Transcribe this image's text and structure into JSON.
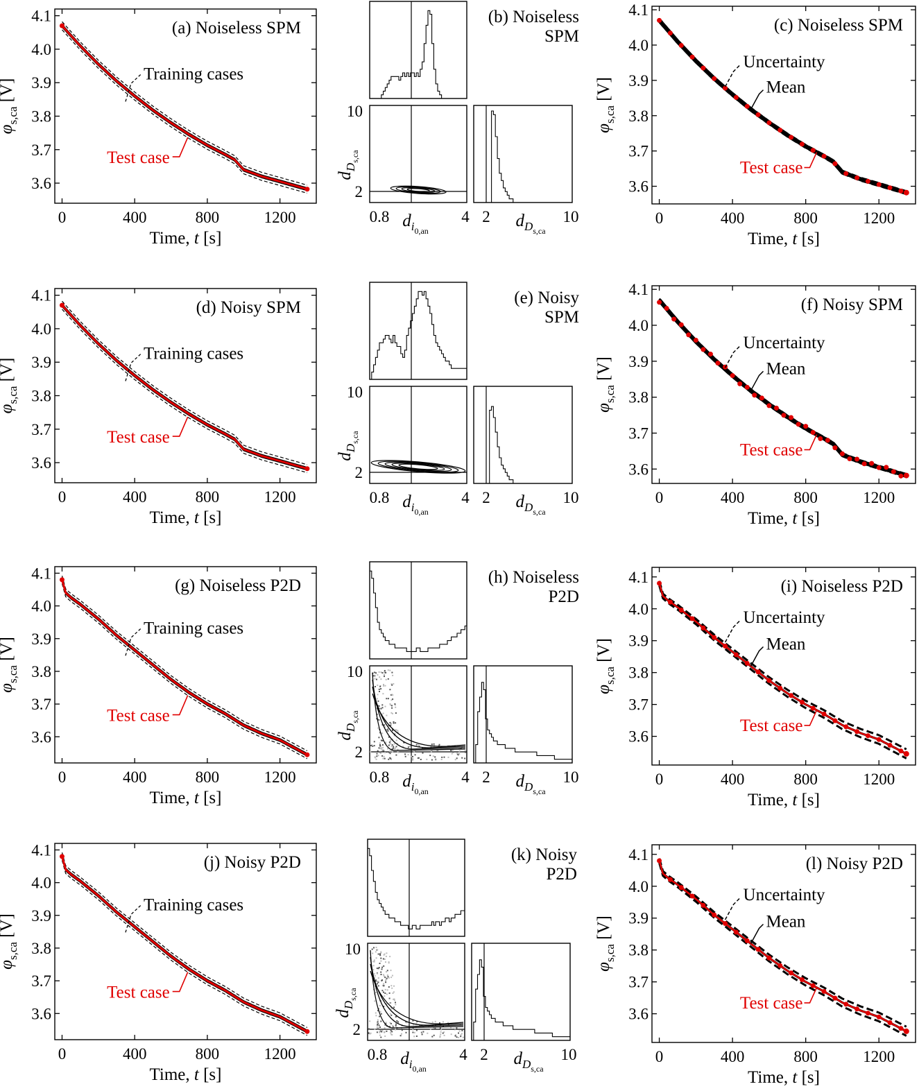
{
  "chart_data": [
    {
      "id": "a",
      "type": "line",
      "title": "(a) Noiseless SPM",
      "xlabel": "Time, t [s]",
      "ylabel": "φ s,ca [V]",
      "xlim": [
        -40,
        1400
      ],
      "ylim": [
        3.54,
        4.12
      ],
      "xticks": [
        "0",
        "400",
        "800",
        "1200"
      ],
      "yticks": [
        "3.6",
        "3.7",
        "3.8",
        "3.9",
        "4.0",
        "4.1"
      ],
      "labels": {
        "top": "Training cases",
        "bottom": "Test case"
      },
      "series": [
        {
          "name": "Test case",
          "x": [
            0,
            100,
            200,
            300,
            400,
            500,
            600,
            700,
            800,
            900,
            950,
            1000,
            1100,
            1200,
            1350
          ],
          "values": [
            4.07,
            4.01,
            3.955,
            3.905,
            3.86,
            3.818,
            3.78,
            3.745,
            3.713,
            3.685,
            3.67,
            3.64,
            3.62,
            3.605,
            3.582
          ]
        }
      ]
    },
    {
      "id": "c",
      "type": "line",
      "title": "(c) Noiseless SPM",
      "xlabel": "Time, t [s]",
      "ylabel": "φ s,ca [V]",
      "xlim": [
        -40,
        1400
      ],
      "ylim": [
        3.55,
        4.11
      ],
      "xticks": [
        "0",
        "400",
        "800",
        "1200"
      ],
      "yticks": [
        "3.6",
        "3.7",
        "3.8",
        "3.9",
        "4.0",
        "4.1"
      ],
      "labels": {
        "unc": "Uncertainty",
        "mean": "Mean",
        "test": "Test case"
      },
      "series": [
        {
          "name": "Test case",
          "x": [
            0,
            100,
            200,
            300,
            400,
            500,
            600,
            700,
            800,
            900,
            950,
            1000,
            1100,
            1200,
            1350
          ],
          "values": [
            4.07,
            4.01,
            3.955,
            3.905,
            3.86,
            3.818,
            3.78,
            3.745,
            3.713,
            3.685,
            3.67,
            3.64,
            3.62,
            3.605,
            3.582
          ]
        }
      ]
    },
    {
      "id": "d",
      "type": "line",
      "title": "(d) Noisy SPM",
      "xlabel": "Time, t [s]",
      "ylabel": "φ s,ca [V]",
      "xlim": [
        -40,
        1400
      ],
      "ylim": [
        3.54,
        4.12
      ],
      "xticks": [
        "0",
        "400",
        "800",
        "1200"
      ],
      "yticks": [
        "3.6",
        "3.7",
        "3.8",
        "3.9",
        "4.0",
        "4.1"
      ],
      "labels": {
        "top": "Training cases",
        "bottom": "Test case"
      },
      "series": [
        {
          "name": "Test case",
          "x": [
            0,
            100,
            200,
            300,
            400,
            500,
            600,
            700,
            800,
            900,
            950,
            1000,
            1100,
            1200,
            1350
          ],
          "values": [
            4.07,
            4.01,
            3.955,
            3.905,
            3.86,
            3.818,
            3.78,
            3.745,
            3.713,
            3.685,
            3.67,
            3.64,
            3.62,
            3.605,
            3.582
          ]
        }
      ]
    },
    {
      "id": "f",
      "type": "line",
      "title": "(f) Noisy SPM",
      "xlabel": "Time, t [s]",
      "ylabel": "φ s,ca [V]",
      "xlim": [
        -40,
        1400
      ],
      "ylim": [
        3.56,
        4.11
      ],
      "xticks": [
        "0",
        "400",
        "800",
        "1200"
      ],
      "yticks": [
        "3.6",
        "3.7",
        "3.8",
        "3.9",
        "4.0",
        "4.1"
      ],
      "labels": {
        "unc": "Uncertainty",
        "mean": "Mean",
        "test": "Test case"
      },
      "series": [
        {
          "name": "Test case",
          "x": [
            0,
            100,
            200,
            300,
            400,
            500,
            600,
            700,
            800,
            900,
            950,
            1000,
            1100,
            1200,
            1350
          ],
          "values": [
            4.07,
            4.01,
            3.955,
            3.905,
            3.86,
            3.818,
            3.78,
            3.745,
            3.713,
            3.685,
            3.67,
            3.64,
            3.62,
            3.605,
            3.582
          ]
        }
      ]
    },
    {
      "id": "g",
      "type": "line",
      "title": "(g) Noiseless P2D",
      "xlabel": "Time, t [s]",
      "ylabel": "φ s,ca [V]",
      "xlim": [
        -40,
        1400
      ],
      "ylim": [
        3.52,
        4.12
      ],
      "xticks": [
        "0",
        "400",
        "800",
        "1200"
      ],
      "yticks": [
        "3.6",
        "3.7",
        "3.8",
        "3.9",
        "4.0",
        "4.1"
      ],
      "labels": {
        "top": "Training cases",
        "bottom": "Test case"
      },
      "series": [
        {
          "name": "Test case",
          "x": [
            0,
            20,
            50,
            100,
            200,
            300,
            400,
            500,
            600,
            700,
            800,
            900,
            1000,
            1100,
            1200,
            1350
          ],
          "values": [
            4.08,
            4.04,
            4.025,
            4.005,
            3.96,
            3.91,
            3.865,
            3.82,
            3.775,
            3.735,
            3.7,
            3.67,
            3.635,
            3.61,
            3.59,
            3.545
          ]
        }
      ]
    },
    {
      "id": "i",
      "type": "line",
      "title": "(i) Noiseless P2D",
      "xlabel": "Time, t [s]",
      "ylabel": "φ s,ca [V]",
      "xlim": [
        -40,
        1400
      ],
      "ylim": [
        3.51,
        4.13
      ],
      "xticks": [
        "0",
        "400",
        "800",
        "1200"
      ],
      "yticks": [
        "3.6",
        "3.7",
        "3.8",
        "3.9",
        "4.0",
        "4.1"
      ],
      "labels": {
        "unc": "Uncertainty",
        "mean": "Mean",
        "test": "Test case"
      },
      "series": [
        {
          "name": "Test case",
          "x": [
            0,
            20,
            50,
            100,
            200,
            300,
            400,
            500,
            600,
            700,
            800,
            900,
            1000,
            1100,
            1200,
            1350
          ],
          "values": [
            4.08,
            4.04,
            4.025,
            4.005,
            3.96,
            3.91,
            3.865,
            3.82,
            3.775,
            3.735,
            3.7,
            3.67,
            3.635,
            3.61,
            3.59,
            3.545
          ]
        }
      ]
    },
    {
      "id": "j",
      "type": "line",
      "title": "(j) Noisy P2D",
      "xlabel": "Time, t [s]",
      "ylabel": "φ s,ca [V]",
      "xlim": [
        -40,
        1400
      ],
      "ylim": [
        3.52,
        4.12
      ],
      "xticks": [
        "0",
        "400",
        "800",
        "1200"
      ],
      "yticks": [
        "3.6",
        "3.7",
        "3.8",
        "3.9",
        "4.0",
        "4.1"
      ],
      "labels": {
        "top": "Training cases",
        "bottom": "Test case"
      },
      "series": [
        {
          "name": "Test case",
          "x": [
            0,
            20,
            50,
            100,
            200,
            300,
            400,
            500,
            600,
            700,
            800,
            900,
            1000,
            1100,
            1200,
            1350
          ],
          "values": [
            4.08,
            4.04,
            4.025,
            4.005,
            3.96,
            3.91,
            3.865,
            3.82,
            3.775,
            3.735,
            3.7,
            3.67,
            3.635,
            3.61,
            3.59,
            3.545
          ]
        }
      ]
    },
    {
      "id": "l",
      "type": "line",
      "title": "(l) Noisy P2D",
      "xlabel": "Time, t [s]",
      "ylabel": "φ s,ca [V]",
      "xlim": [
        -40,
        1400
      ],
      "ylim": [
        3.51,
        4.13
      ],
      "xticks": [
        "0",
        "400",
        "800",
        "1200"
      ],
      "yticks": [
        "3.6",
        "3.7",
        "3.8",
        "3.9",
        "4.0",
        "4.1"
      ],
      "labels": {
        "unc": "Uncertainty",
        "mean": "Mean",
        "test": "Test case"
      },
      "series": [
        {
          "name": "Test case",
          "x": [
            0,
            20,
            50,
            100,
            200,
            300,
            400,
            500,
            600,
            700,
            800,
            900,
            1000,
            1100,
            1200,
            1350
          ],
          "values": [
            4.08,
            4.04,
            4.025,
            4.005,
            3.96,
            3.91,
            3.865,
            3.82,
            3.775,
            3.735,
            3.7,
            3.67,
            3.635,
            3.61,
            3.59,
            3.545
          ]
        }
      ]
    },
    {
      "id": "b",
      "type": "histogram",
      "title": "(b) Noiseless SPM",
      "xlabel": "d i0,an",
      "ylabel": "d Ds,ca",
      "xticks": [
        "0.8",
        "4"
      ],
      "yticks": [
        "10",
        "2"
      ],
      "xticks2": [
        "2",
        "10"
      ],
      "xlabel2": "d Ds,ca",
      "hist_x": [
        0,
        0,
        0,
        0,
        0,
        0,
        1,
        2,
        3,
        4,
        5,
        6,
        6,
        6,
        6,
        5,
        6,
        7,
        6,
        7,
        6,
        7,
        7,
        6,
        7,
        6,
        8,
        10,
        15,
        20,
        24,
        23,
        15,
        8,
        4,
        2,
        1,
        0,
        0,
        0,
        0,
        0,
        0,
        0,
        0,
        0,
        0,
        0,
        0,
        0
      ],
      "hist_y": [
        0,
        0,
        0,
        0,
        0,
        0,
        0,
        0,
        0,
        25,
        24,
        18,
        12,
        8,
        6,
        4,
        3,
        2,
        1,
        1,
        0,
        0,
        0,
        0,
        0,
        0,
        0,
        0,
        0,
        0,
        0,
        0,
        0,
        0,
        0,
        0,
        0,
        0,
        0,
        0,
        0,
        0,
        0,
        0,
        0,
        0,
        0,
        0,
        0,
        0
      ]
    },
    {
      "id": "e",
      "type": "histogram",
      "title": "(e) Noisy SPM",
      "xlabel": "d i0,an",
      "ylabel": "d Ds,ca",
      "xticks": [
        "0.8",
        "4"
      ],
      "yticks": [
        "10",
        "2"
      ],
      "xticks2": [
        "2",
        "10"
      ],
      "xlabel2": "d Ds,ca",
      "hist_x": [
        0,
        2,
        4,
        6,
        8,
        10,
        10,
        11,
        12,
        12,
        11,
        10,
        12,
        10,
        9,
        9,
        7,
        6,
        8,
        12,
        14,
        16,
        18,
        20,
        22,
        24,
        24,
        23,
        24,
        22,
        20,
        18,
        15,
        12,
        10,
        9,
        8,
        7,
        6,
        5,
        5,
        4,
        3,
        3,
        3,
        3,
        3,
        3,
        3,
        3
      ],
      "hist_y": [
        0,
        0,
        0,
        0,
        0,
        0,
        0,
        0,
        20,
        21,
        18,
        14,
        10,
        7,
        5,
        4,
        3,
        2,
        1,
        1,
        0,
        0,
        0,
        0,
        0,
        0,
        0,
        0,
        0,
        0,
        0,
        0,
        0,
        0,
        0,
        0,
        0,
        0,
        0,
        0,
        0,
        0,
        0,
        0,
        0,
        0,
        0,
        0,
        0,
        0
      ]
    },
    {
      "id": "h",
      "type": "histogram",
      "title": "(h) Noiseless P2D",
      "xlabel": "d i0,an",
      "ylabel": "d Ds,ca",
      "xticks": [
        "0.8",
        "4"
      ],
      "yticks": [
        "10",
        "2"
      ],
      "xticks2": [
        "2",
        "10"
      ],
      "xlabel2": "d Ds,ca",
      "hist_x": [
        24,
        22,
        18,
        14,
        10,
        8,
        7,
        6,
        5,
        5,
        4,
        4,
        4,
        3,
        3,
        3,
        3,
        3,
        3,
        2,
        2,
        2,
        2,
        2,
        3,
        3,
        2,
        2,
        2,
        2,
        3,
        3,
        3,
        3,
        3,
        3,
        4,
        4,
        4,
        4,
        5,
        5,
        6,
        6,
        6,
        7,
        7,
        8,
        8,
        9
      ],
      "hist_y": [
        0,
        5,
        14,
        18,
        22,
        20,
        12,
        9,
        8,
        7,
        6,
        6,
        5,
        5,
        5,
        5,
        4,
        4,
        4,
        4,
        4,
        3,
        3,
        3,
        3,
        3,
        3,
        3,
        3,
        3,
        3,
        3,
        2,
        2,
        2,
        2,
        2,
        2,
        2,
        2,
        2,
        1,
        1,
        1,
        1,
        1,
        1,
        1,
        1,
        1
      ]
    },
    {
      "id": "k",
      "type": "histogram",
      "title": "(k) Noisy P2D",
      "xlabel": "d i0,an",
      "ylabel": "d Ds,ca",
      "xticks": [
        "0.8",
        "4"
      ],
      "yticks": [
        "10",
        "2"
      ],
      "xticks2": [
        "2",
        "10"
      ],
      "xlabel2": "d Ds,ca",
      "hist_x": [
        24,
        22,
        18,
        15,
        12,
        10,
        9,
        8,
        7,
        6,
        6,
        5,
        5,
        5,
        4,
        4,
        4,
        3,
        3,
        3,
        3,
        2,
        2,
        3,
        3,
        2,
        2,
        3,
        3,
        3,
        3,
        3,
        3,
        4,
        3,
        4,
        4,
        3,
        4,
        4,
        5,
        5,
        4,
        5,
        5,
        6,
        6,
        6,
        7,
        7
      ],
      "hist_y": [
        0,
        5,
        14,
        18,
        22,
        20,
        12,
        9,
        8,
        7,
        6,
        6,
        5,
        5,
        5,
        5,
        4,
        4,
        4,
        4,
        4,
        3,
        3,
        3,
        3,
        3,
        3,
        3,
        3,
        3,
        3,
        3,
        2,
        2,
        2,
        2,
        2,
        2,
        2,
        2,
        2,
        1,
        1,
        1,
        1,
        1,
        1,
        1,
        1,
        1
      ]
    }
  ]
}
